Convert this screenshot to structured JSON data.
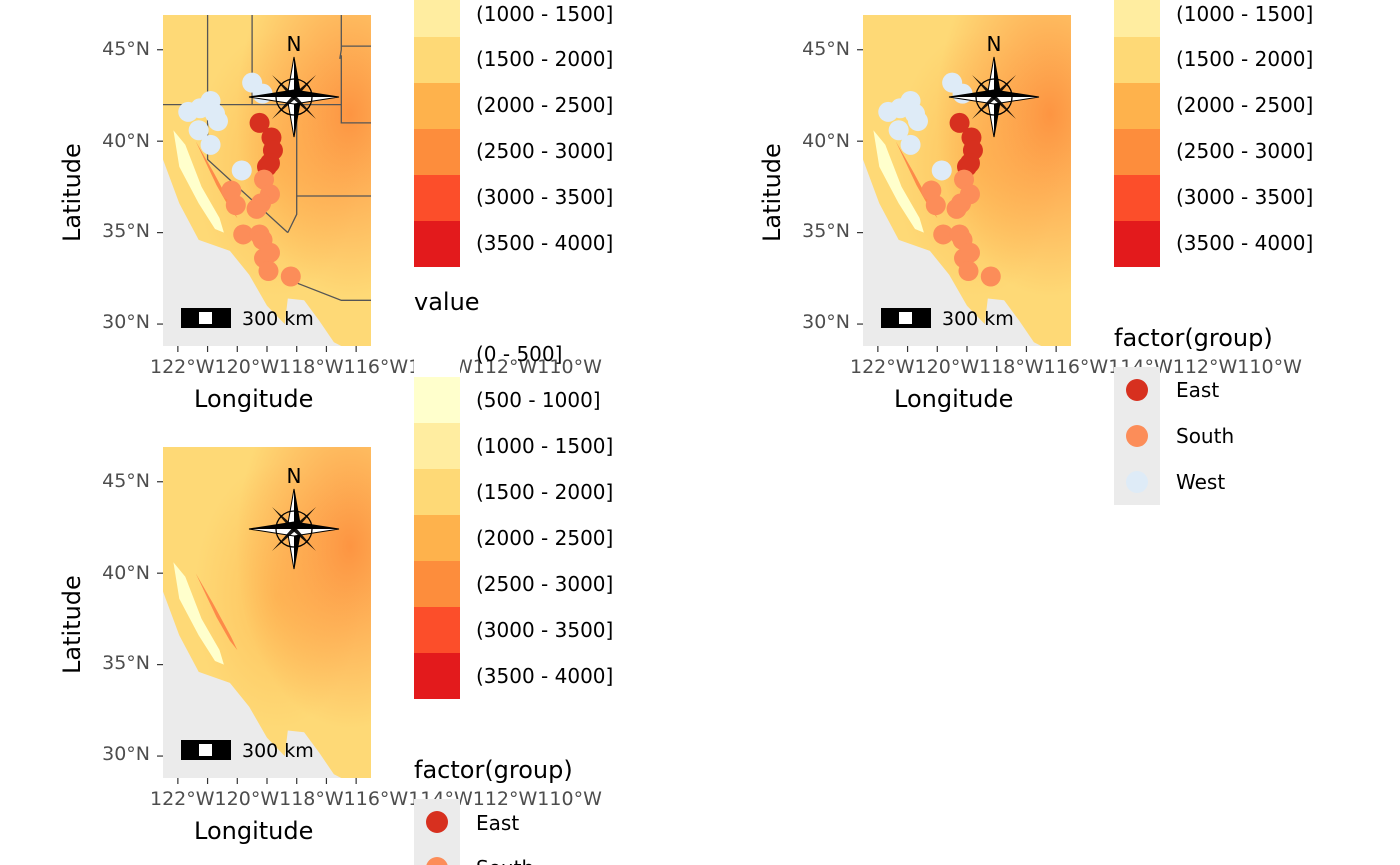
{
  "axes": {
    "xlabel": "Longitude",
    "ylabel": "Latitude",
    "yticks": [
      "45°N",
      "40°N",
      "35°N",
      "30°N"
    ],
    "xticks_text": "122°W120°W118°W116°W114°W112°W110°W"
  },
  "map_extras": {
    "north_label": "N",
    "scalebar_label": "300 km"
  },
  "elevation_legend": {
    "title": "value",
    "items": [
      {
        "label": "(0 - 500]",
        "color": "#ffffff"
      },
      {
        "label": "(500 - 1000]",
        "color": "#ffffcc"
      },
      {
        "label": "(1000 - 1500]",
        "color": "#ffeda0"
      },
      {
        "label": "(1500 - 2000]",
        "color": "#fed976"
      },
      {
        "label": "(2000 - 2500]",
        "color": "#feb24c"
      },
      {
        "label": "(2500 - 3000]",
        "color": "#fd8d3c"
      },
      {
        "label": "(3000 - 3500]",
        "color": "#fc4e2a"
      },
      {
        "label": "(3500 - 4000]",
        "color": "#e31a1c"
      }
    ]
  },
  "group_legend": {
    "title": "factor(group)",
    "items": [
      {
        "label": "East",
        "color": "#d7301f"
      },
      {
        "label": "South",
        "color": "#fc8d59"
      },
      {
        "label": "West",
        "color": "#deebf7"
      }
    ]
  },
  "chart_data": [
    {
      "type": "scatter",
      "panel": "top-left",
      "xlabel": "Longitude",
      "ylabel": "Latitude",
      "xlim": [
        -123,
        -109
      ],
      "ylim": [
        28.8,
        46.9
      ],
      "boundaries": true,
      "series": [
        {
          "name": "East",
          "points": [
            [
              -116.5,
              41
            ],
            [
              -115.7,
              40.2
            ],
            [
              -115.6,
              39.5
            ],
            [
              -115.8,
              38.8
            ],
            [
              -116.0,
              38.6
            ]
          ]
        },
        {
          "name": "South",
          "points": [
            [
              -118.4,
              37.3
            ],
            [
              -118.1,
              36.5
            ],
            [
              -116.2,
              37.9
            ],
            [
              -115.8,
              37.1
            ],
            [
              -116.4,
              36.6
            ],
            [
              -116.7,
              36.3
            ],
            [
              -117.6,
              34.9
            ],
            [
              -116.5,
              34.9
            ],
            [
              -116.3,
              34.6
            ],
            [
              -116.2,
              33.6
            ],
            [
              -115.8,
              33.9
            ],
            [
              -115.9,
              32.9
            ],
            [
              -114.4,
              32.6
            ]
          ]
        },
        {
          "name": "West",
          "points": [
            [
              -121.3,
              41.6
            ],
            [
              -120.5,
              41.8
            ],
            [
              -119.8,
              42.2
            ],
            [
              -119.5,
              41.5
            ],
            [
              -119.3,
              41.1
            ],
            [
              -120.6,
              40.6
            ],
            [
              -119.8,
              39.8
            ],
            [
              -117.7,
              38.4
            ],
            [
              -117.0,
              43.2
            ],
            [
              -116.3,
              42.6
            ]
          ]
        }
      ]
    },
    {
      "type": "scatter",
      "panel": "top-right",
      "xlabel": "Longitude",
      "ylabel": "Latitude",
      "xlim": [
        -123,
        -109
      ],
      "ylim": [
        28.8,
        46.9
      ],
      "boundaries": false,
      "series": [
        {
          "name": "East",
          "points": [
            [
              -116.5,
              41
            ],
            [
              -115.7,
              40.2
            ],
            [
              -115.6,
              39.5
            ],
            [
              -115.8,
              38.8
            ],
            [
              -116.0,
              38.6
            ]
          ]
        },
        {
          "name": "South",
          "points": [
            [
              -118.4,
              37.3
            ],
            [
              -118.1,
              36.5
            ],
            [
              -116.2,
              37.9
            ],
            [
              -115.8,
              37.1
            ],
            [
              -116.4,
              36.6
            ],
            [
              -116.7,
              36.3
            ],
            [
              -117.6,
              34.9
            ],
            [
              -116.5,
              34.9
            ],
            [
              -116.3,
              34.6
            ],
            [
              -116.2,
              33.6
            ],
            [
              -115.8,
              33.9
            ],
            [
              -115.9,
              32.9
            ],
            [
              -114.4,
              32.6
            ]
          ]
        },
        {
          "name": "West",
          "points": [
            [
              -121.3,
              41.6
            ],
            [
              -120.5,
              41.8
            ],
            [
              -119.8,
              42.2
            ],
            [
              -119.5,
              41.5
            ],
            [
              -119.3,
              41.1
            ],
            [
              -120.6,
              40.6
            ],
            [
              -119.8,
              39.8
            ],
            [
              -117.7,
              38.4
            ],
            [
              -117.0,
              43.2
            ],
            [
              -116.3,
              42.6
            ]
          ]
        }
      ]
    },
    {
      "type": "heatmap",
      "panel": "bottom-left",
      "xlabel": "Longitude",
      "ylabel": "Latitude",
      "xlim": [
        -123,
        -109
      ],
      "ylim": [
        28.8,
        46.9
      ],
      "boundaries": false,
      "series": []
    }
  ]
}
